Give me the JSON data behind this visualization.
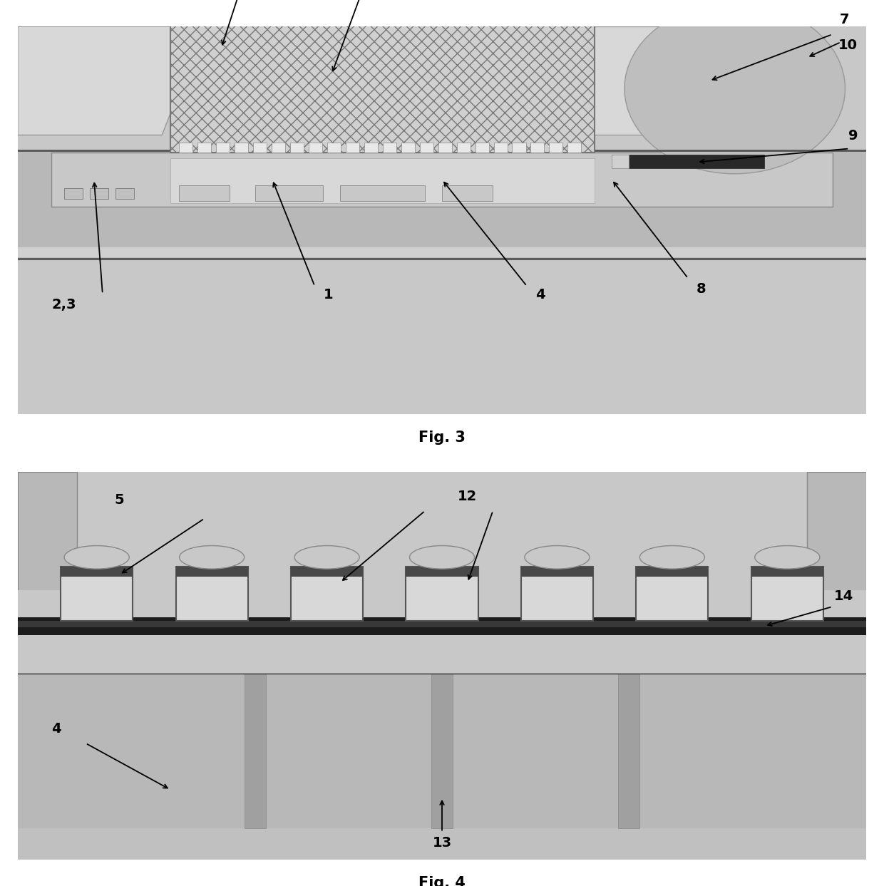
{
  "fig3": {
    "title": "Fig. 3",
    "bg_color": "#c8c8c8",
    "pcb_color": "#b4b4b4",
    "chip_layer_color": "#c0c0c0",
    "hatch_box_color": "#d4d4d4",
    "ball_color": "#c0c0c0",
    "dark_bar_color": "#303030",
    "notch_color": "#d8d8d8",
    "array_cell_color": "#e8e8e8"
  },
  "fig4": {
    "title": "Fig. 4",
    "bg_color": "#c0c0c0",
    "substrate_color": "#b8b8b8",
    "sensor_layer_color": "#c8c8c8",
    "dark_layer_color": "#1a1a1a",
    "pillar_color": "#d0d0d0",
    "via_color": "#a8a8a8",
    "notch_col_color": "#b0b0b0"
  }
}
